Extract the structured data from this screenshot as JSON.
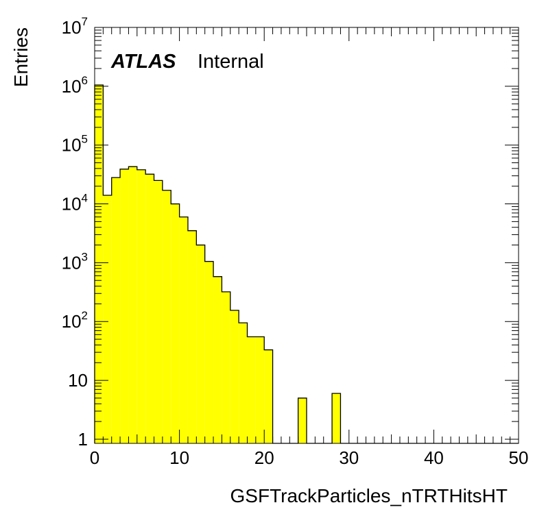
{
  "chart_data": {
    "type": "bar",
    "histogram": true,
    "fill_color": "#ffff00",
    "line_color": "#000000",
    "xlabel": "GSFTrackParticles_nTRTHitsHT",
    "ylabel": "Entries",
    "label": {
      "experiment": "ATLAS",
      "status": "Internal"
    },
    "xlim": [
      0,
      50
    ],
    "ylim": [
      0.85,
      10000000
    ],
    "yscale": "log",
    "bin_width": 1,
    "x_ticks": [
      0,
      10,
      20,
      30,
      40,
      50
    ],
    "x_tick_labels": [
      "0",
      "10",
      "20",
      "30",
      "40",
      "50"
    ],
    "y_ticks": [
      1,
      10,
      100,
      1000,
      10000,
      100000,
      1000000,
      10000000
    ],
    "y_tick_labels": [
      {
        "base": "1",
        "exp": ""
      },
      {
        "base": "10",
        "exp": ""
      },
      {
        "base": "10",
        "exp": "2"
      },
      {
        "base": "10",
        "exp": "3"
      },
      {
        "base": "10",
        "exp": "4"
      },
      {
        "base": "10",
        "exp": "5"
      },
      {
        "base": "10",
        "exp": "6"
      },
      {
        "base": "10",
        "exp": "7"
      }
    ],
    "bin_edges_start": [
      0,
      1,
      2,
      3,
      4,
      5,
      6,
      7,
      8,
      9,
      10,
      11,
      12,
      13,
      14,
      15,
      16,
      17,
      18,
      19,
      20,
      21,
      22,
      23,
      24,
      25,
      26,
      27,
      28,
      29,
      30,
      31,
      32,
      33,
      34,
      35,
      36,
      37,
      38,
      39,
      40,
      41,
      42,
      43,
      44,
      45,
      46,
      47,
      48,
      49
    ],
    "values": [
      1050000,
      14000,
      28000,
      39000,
      43000,
      38000,
      32000,
      25000,
      17000,
      10000,
      6000,
      3500,
      2000,
      1050,
      580,
      320,
      155,
      95,
      55,
      55,
      33,
      0,
      0,
      0,
      5,
      0,
      0,
      0,
      6,
      0,
      0,
      0,
      0,
      0,
      0,
      0,
      0,
      0,
      0,
      0,
      0,
      0,
      0,
      0,
      0,
      0,
      0,
      0,
      0,
      0
    ]
  }
}
